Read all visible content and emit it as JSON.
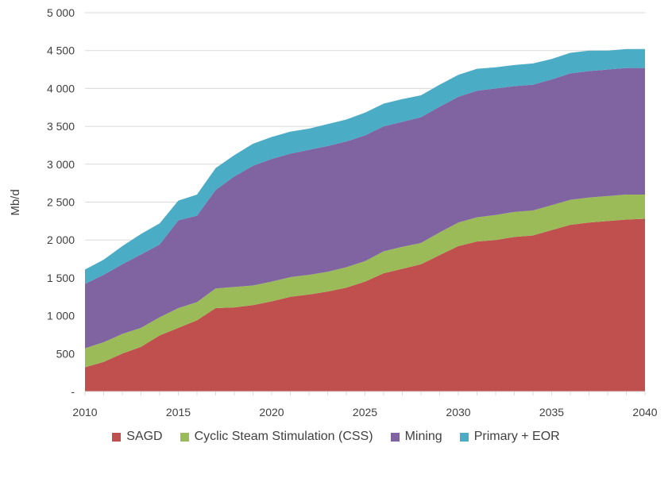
{
  "chart_data": {
    "type": "area",
    "stacked": true,
    "title": "",
    "xlabel": "",
    "ylabel": "Mb/d",
    "x": [
      2010,
      2011,
      2012,
      2013,
      2014,
      2015,
      2016,
      2017,
      2018,
      2019,
      2020,
      2021,
      2022,
      2023,
      2024,
      2025,
      2026,
      2027,
      2028,
      2029,
      2030,
      2031,
      2032,
      2033,
      2034,
      2035,
      2036,
      2037,
      2038,
      2039,
      2040
    ],
    "xlim": [
      2010,
      2040
    ],
    "xticks": [
      2010,
      2015,
      2020,
      2025,
      2030,
      2035,
      2040
    ],
    "xtick_labels": [
      "2010",
      "2015",
      "2020",
      "2025",
      "2030",
      "2035",
      "2040"
    ],
    "ylim": [
      0,
      5000
    ],
    "yticks": [
      0,
      500,
      1000,
      1500,
      2000,
      2500,
      3000,
      3500,
      4000,
      4500,
      5000
    ],
    "ytick_labels": [
      "-",
      "500",
      "1 000",
      "1 500",
      "2 000",
      "2 500",
      "3 000",
      "3 500",
      "4 000",
      "4 500",
      "5 000"
    ],
    "grid": true,
    "legend_placement": "bottom",
    "series": [
      {
        "name": "SAGD",
        "color": "#c0504d",
        "values": [
          320,
          390,
          500,
          590,
          740,
          840,
          940,
          1100,
          1110,
          1140,
          1190,
          1250,
          1280,
          1320,
          1370,
          1450,
          1560,
          1620,
          1680,
          1800,
          1920,
          1980,
          2000,
          2040,
          2060,
          2130,
          2200,
          2230,
          2250,
          2270,
          2280
        ]
      },
      {
        "name": "Cyclic Steam Stimulation (CSS)",
        "color": "#9bbb59",
        "values": [
          250,
          260,
          260,
          250,
          240,
          260,
          240,
          260,
          270,
          260,
          260,
          260,
          260,
          260,
          270,
          270,
          290,
          290,
          280,
          300,
          310,
          320,
          330,
          330,
          330,
          330,
          330,
          330,
          330,
          330,
          320
        ]
      },
      {
        "name": "Mining",
        "color": "#8064a2",
        "values": [
          850,
          890,
          920,
          970,
          960,
          1160,
          1140,
          1300,
          1460,
          1580,
          1620,
          1630,
          1650,
          1660,
          1660,
          1660,
          1650,
          1650,
          1660,
          1660,
          1660,
          1670,
          1670,
          1660,
          1660,
          1660,
          1670,
          1670,
          1670,
          1670,
          1670
        ]
      },
      {
        "name": "Primary + EOR",
        "color": "#4bacc6",
        "values": [
          190,
          200,
          240,
          270,
          280,
          260,
          280,
          290,
          280,
          290,
          290,
          290,
          280,
          290,
          290,
          300,
          300,
          300,
          290,
          290,
          290,
          290,
          280,
          280,
          280,
          270,
          270,
          270,
          250,
          250,
          250
        ]
      }
    ]
  }
}
